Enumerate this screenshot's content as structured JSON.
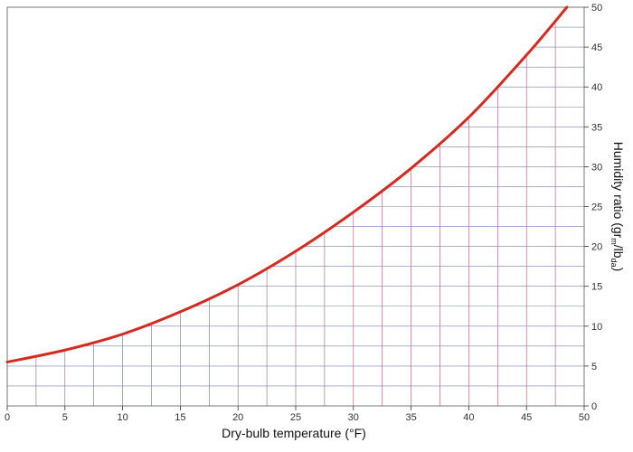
{
  "chart_data": {
    "type": "line",
    "title": "",
    "xlabel": "Dry-bulb temperature (°F)",
    "ylabel": {
      "main": "Humidity ratio (gr",
      "sub1": "m",
      "mid": "/lb",
      "sub2": "da",
      "end": ")"
    },
    "xlim": [
      0,
      50
    ],
    "ylim": [
      0,
      50
    ],
    "x_ticks": [
      0,
      5,
      10,
      15,
      20,
      25,
      30,
      35,
      40,
      45,
      50
    ],
    "y_ticks": [
      0,
      5,
      10,
      15,
      20,
      25,
      30,
      35,
      40,
      45,
      50
    ],
    "grid": true,
    "y_axis_side": "right",
    "series": [
      {
        "color": "#d42a20",
        "x": [
          0,
          5,
          10,
          15,
          20,
          25,
          30,
          35,
          40,
          45,
          48.5
        ],
        "y": [
          5.5,
          7.0,
          9.0,
          11.8,
          15.2,
          19.4,
          24.3,
          29.8,
          36.2,
          44.0,
          50.0
        ]
      }
    ]
  }
}
